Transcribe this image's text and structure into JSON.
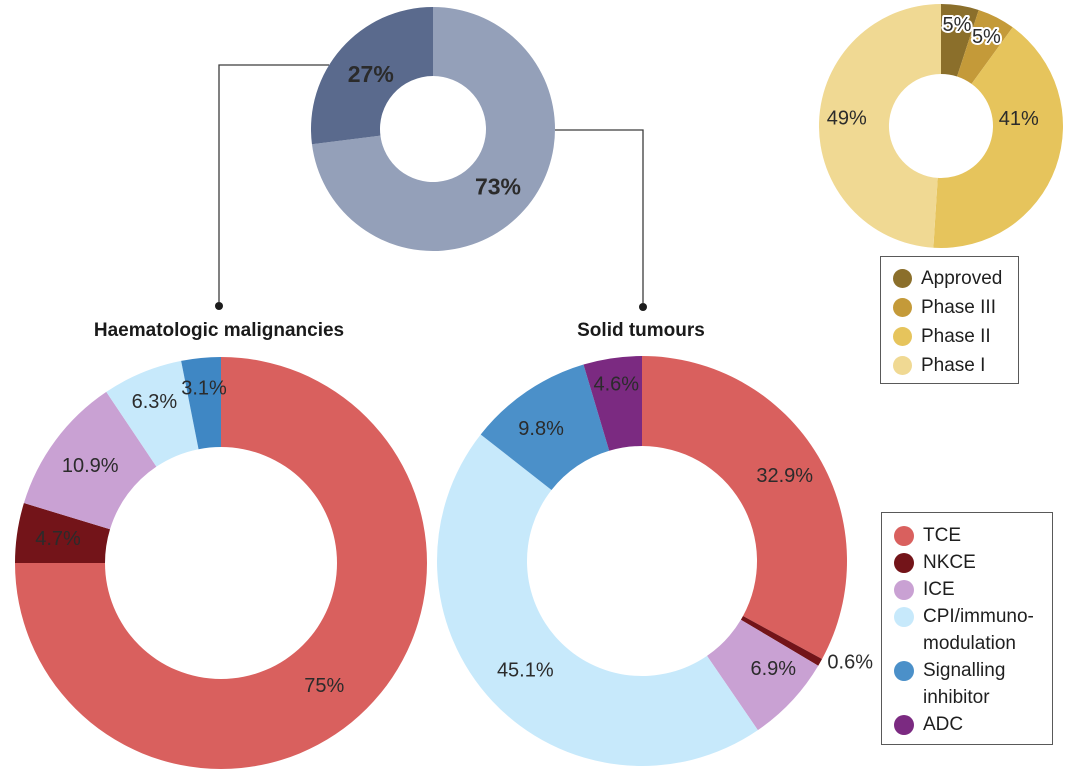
{
  "titles": {
    "haematologic": "Haematologic malignancies",
    "solid": "Solid tumours"
  },
  "colors": {
    "background": "#ffffff",
    "label_text": "#2b2b2b",
    "title_text": "#1a1a1a",
    "connector": "#3c3c3c",
    "legend_border": "#595959"
  },
  "chart_data": [
    {
      "id": "overview",
      "type": "pie",
      "title": "",
      "legend_position": "none",
      "slices": [
        {
          "label": "Solid tumours",
          "value_pct": 73,
          "data_label": "73%",
          "color": "#94a0b9",
          "label_color": "#ffffff",
          "label_r_frac": 0.71
        },
        {
          "label": "Haematologic malignancies",
          "value_pct": 27,
          "data_label": "27%",
          "color": "#5a6a8d",
          "label_color": "#ffffff",
          "label_r_frac": 0.68
        }
      ]
    },
    {
      "id": "phases",
      "type": "pie",
      "title": "",
      "legend_position": "below",
      "slices": [
        {
          "label": "Approved",
          "value_pct": 5,
          "data_label": "5%",
          "color": "#8b6f2b",
          "label_color": "#2b2b2b",
          "label_r_frac": 0.84,
          "halo": true
        },
        {
          "label": "Phase III",
          "value_pct": 5,
          "data_label": "5%",
          "color": "#c49a39",
          "label_color": "#2b2b2b",
          "label_r_frac": 0.82,
          "halo": true
        },
        {
          "label": "Phase II",
          "value_pct": 41,
          "data_label": "41%",
          "color": "#e6c45c",
          "label_color": "#2b2b2b",
          "label_r_frac": 0.64,
          "label_angle": 85
        },
        {
          "label": "Phase I",
          "value_pct": 49,
          "data_label": "49%",
          "color": "#f0d993",
          "label_color": "#2b2b2b",
          "label_r_frac": 0.775,
          "label_angle": 274.7
        }
      ]
    },
    {
      "id": "haematologic",
      "type": "pie",
      "title": "Haematologic malignancies",
      "legend_position": "right",
      "slices": [
        {
          "label": "TCE",
          "value_pct": 75,
          "data_label": "75%",
          "color": "#d9605e",
          "label_color": "#2b2b2b",
          "label_r_frac": 0.78,
          "label_angle": 140
        },
        {
          "label": "NKCE",
          "value_pct": 4.7,
          "data_label": "4.7%",
          "color": "#731419",
          "label_color": "#ffffff",
          "label_r_frac": 0.8
        },
        {
          "label": "ICE",
          "value_pct": 10.9,
          "data_label": "10.9%",
          "color": "#c9a1d3",
          "label_color": "#2b2b2b",
          "label_r_frac": 0.79
        },
        {
          "label": "CPI/immuno-modulation",
          "value_pct": 6.3,
          "data_label": "6.3%",
          "color": "#c7e9fb",
          "label_color": "#2b2b2b",
          "label_r_frac": 0.845
        },
        {
          "label": "Signalling inhibitor",
          "value_pct": 3.1,
          "data_label": "3.1%",
          "color": "#3f87c4",
          "label_color": "#2b2b2b",
          "label_r_frac": 0.85
        }
      ]
    },
    {
      "id": "solid",
      "type": "pie",
      "title": "Solid tumours",
      "legend_position": "right",
      "slices": [
        {
          "label": "TCE",
          "value_pct": 32.9,
          "data_label": "32.9%",
          "color": "#d9605e",
          "label_color": "#2b2b2b",
          "label_r_frac": 0.81
        },
        {
          "label": "NKCE",
          "value_pct": 0.6,
          "data_label": "0.6%",
          "color": "#731419",
          "label_color": "#2b2b2b",
          "label_r_frac": 1.13,
          "label_angle": 116,
          "outside": true
        },
        {
          "label": "ICE",
          "value_pct": 6.9,
          "data_label": "6.9%",
          "color": "#c9a1d3",
          "label_color": "#2b2b2b",
          "label_r_frac": 0.83,
          "label_angle": 129.5
        },
        {
          "label": "CPI/immuno-modulation",
          "value_pct": 45.1,
          "data_label": "45.1%",
          "color": "#c7e9fb",
          "label_color": "#2b2b2b",
          "label_r_frac": 0.78
        },
        {
          "label": "Signalling inhibitor",
          "value_pct": 9.8,
          "data_label": "9.8%",
          "color": "#4b90c9",
          "label_color": "#2b2b2b",
          "label_r_frac": 0.81,
          "label_angle": 322.6
        },
        {
          "label": "ADC",
          "value_pct": 4.6,
          "data_label": "4.6%",
          "color": "#7b2a81",
          "label_color": "#ffffff",
          "label_r_frac": 0.87
        }
      ]
    }
  ],
  "legends": {
    "phases": {
      "items": [
        {
          "label": "Approved",
          "color": "#8b6f2b"
        },
        {
          "label": "Phase III",
          "color": "#c49a39"
        },
        {
          "label": "Phase II",
          "color": "#e6c45c"
        },
        {
          "label": "Phase I",
          "color": "#f0d993"
        }
      ]
    },
    "modalities": {
      "items": [
        {
          "label": "TCE",
          "lines": [
            "TCE"
          ],
          "color": "#d9605e"
        },
        {
          "label": "NKCE",
          "lines": [
            "NKCE"
          ],
          "color": "#731419"
        },
        {
          "label": "ICE",
          "lines": [
            "ICE"
          ],
          "color": "#c9a1d3"
        },
        {
          "label": "CPI/immuno-modulation",
          "lines": [
            "CPI/immuno-",
            "modulation"
          ],
          "color": "#c7e9fb"
        },
        {
          "label": "Signalling inhibitor",
          "lines": [
            "Signalling",
            "inhibitor"
          ],
          "color": "#4b90c9"
        },
        {
          "label": "ADC",
          "lines": [
            "ADC"
          ],
          "color": "#7b2a81"
        }
      ]
    }
  }
}
